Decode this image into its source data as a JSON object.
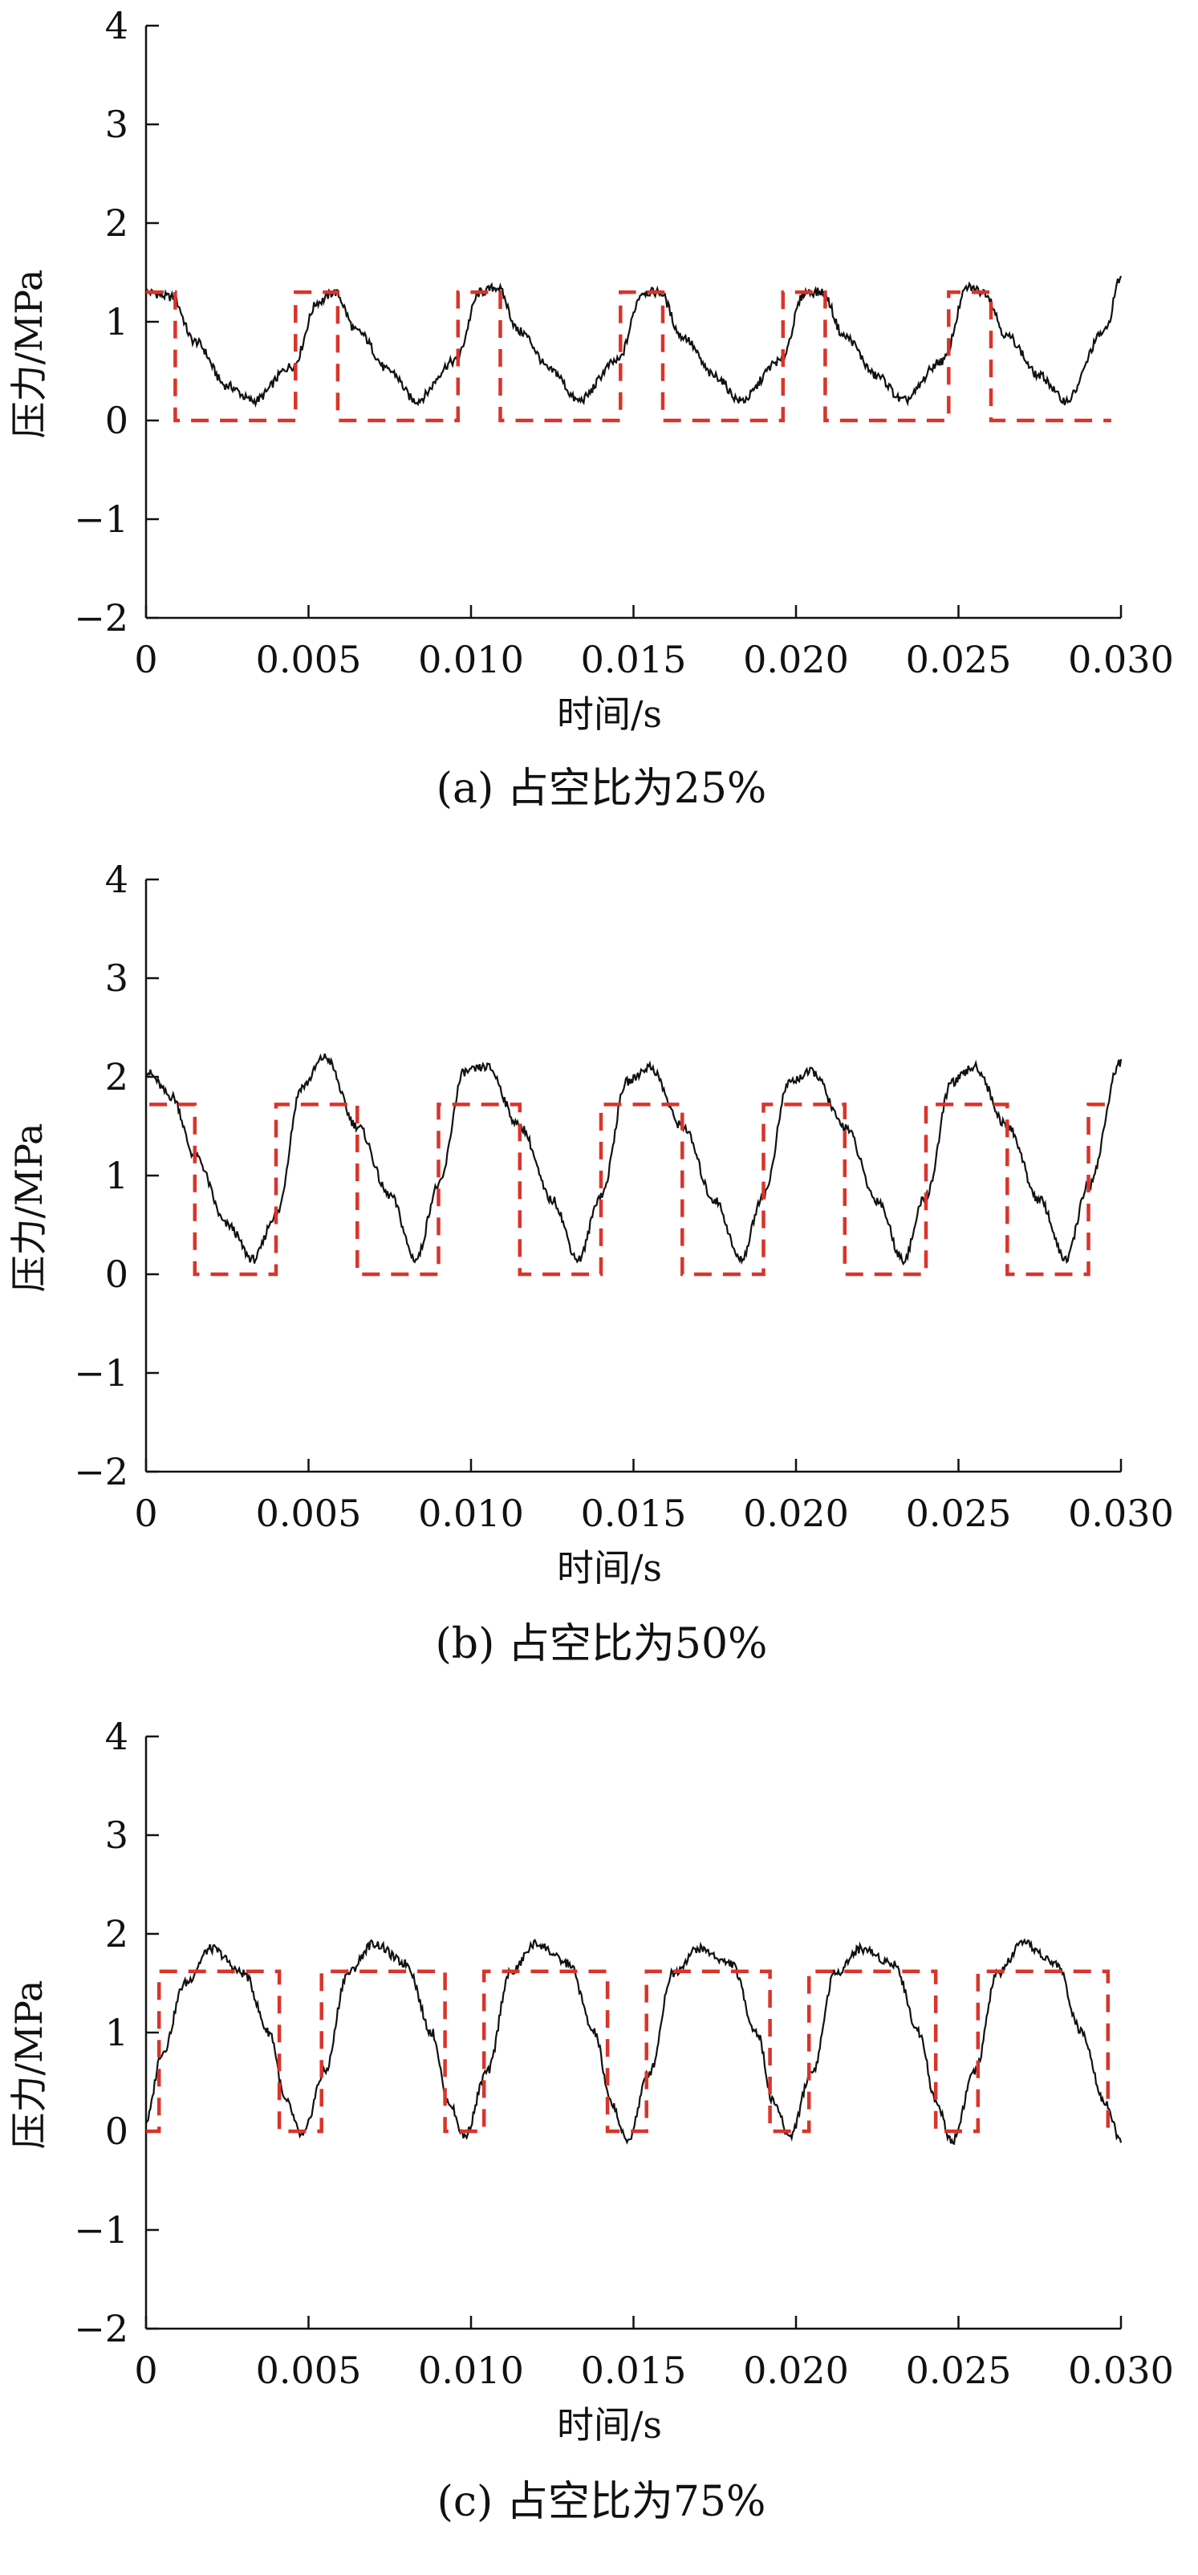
{
  "chart_data": [
    {
      "type": "line",
      "panel": "(a)",
      "caption": "(a)  占空比为25%",
      "xlabel": "时间/s",
      "ylabel": "压力/MPa",
      "xlim": [
        0,
        0.03
      ],
      "ylim": [
        -2,
        4
      ],
      "xticks": [
        "0",
        "0.005",
        "0.010",
        "0.015",
        "0.020",
        "0.025",
        "0.030"
      ],
      "yticks": [
        "−2",
        "−1",
        "0",
        "1",
        "2",
        "3",
        "4"
      ],
      "grid": false,
      "legend": "none",
      "colors": {
        "measured": "#111111",
        "command": "#d9342b"
      },
      "series": [
        {
          "style": "solid",
          "x": [
            0,
            0.0008,
            0.0015,
            0.0025,
            0.0033,
            0.0045,
            0.0053,
            0.0058,
            0.0065,
            0.0075,
            0.0083,
            0.0095,
            0.0103,
            0.0108,
            0.0115,
            0.0125,
            0.0133,
            0.0145,
            0.0153,
            0.0158,
            0.0165,
            0.0175,
            0.0183,
            0.0195,
            0.0203,
            0.0208,
            0.0215,
            0.0225,
            0.0233,
            0.0245,
            0.0253,
            0.0258,
            0.0265,
            0.0275,
            0.0283,
            0.0295,
            0.03
          ],
          "y": [
            1.3,
            1.25,
            0.8,
            0.35,
            0.2,
            0.55,
            1.2,
            1.3,
            0.9,
            0.5,
            0.2,
            0.6,
            1.3,
            1.35,
            0.9,
            0.5,
            0.2,
            0.6,
            1.3,
            1.3,
            0.85,
            0.45,
            0.2,
            0.6,
            1.3,
            1.3,
            0.85,
            0.45,
            0.2,
            0.6,
            1.35,
            1.3,
            0.85,
            0.45,
            0.2,
            0.9,
            1.45
          ]
        },
        {
          "style": "dashed",
          "x": [
            0,
            0.0009,
            0.0009,
            0.0046,
            0.0046,
            0.0059,
            0.0059,
            0.0096,
            0.0096,
            0.0109,
            0.0109,
            0.0146,
            0.0146,
            0.0159,
            0.0159,
            0.0196,
            0.0196,
            0.0209,
            0.0209,
            0.0247,
            0.0247,
            0.026,
            0.026,
            0.0297
          ],
          "y": [
            1.3,
            1.3,
            0,
            0,
            1.3,
            1.3,
            0,
            0,
            1.3,
            1.3,
            0,
            0,
            1.3,
            1.3,
            0,
            0,
            1.3,
            1.3,
            0,
            0,
            1.3,
            1.3,
            0,
            0
          ]
        }
      ]
    },
    {
      "type": "line",
      "panel": "(b)",
      "caption": "(b)  占空比为50%",
      "xlabel": "时间/s",
      "ylabel": "压力/MPa",
      "xlim": [
        0,
        0.03
      ],
      "ylim": [
        -2,
        4
      ],
      "xticks": [
        "0",
        "0.005",
        "0.010",
        "0.015",
        "0.020",
        "0.025",
        "0.030"
      ],
      "yticks": [
        "−2",
        "−1",
        "0",
        "1",
        "2",
        "3",
        "4"
      ],
      "grid": false,
      "legend": "none",
      "colors": {
        "measured": "#111111",
        "command": "#d9342b"
      },
      "series": [
        {
          "style": "solid",
          "x": [
            0,
            0.0008,
            0.0015,
            0.0025,
            0.0033,
            0.004,
            0.0048,
            0.0055,
            0.0065,
            0.0075,
            0.0083,
            0.009,
            0.0098,
            0.0105,
            0.0115,
            0.0125,
            0.0133,
            0.014,
            0.0148,
            0.0155,
            0.0165,
            0.0175,
            0.0183,
            0.019,
            0.0198,
            0.0205,
            0.0215,
            0.0225,
            0.0233,
            0.024,
            0.0248,
            0.0255,
            0.0265,
            0.0275,
            0.0283,
            0.029,
            0.03
          ],
          "y": [
            2.05,
            1.8,
            1.2,
            0.5,
            0.15,
            0.6,
            1.9,
            2.2,
            1.5,
            0.8,
            0.15,
            0.9,
            2.05,
            2.1,
            1.5,
            0.75,
            0.15,
            0.8,
            1.95,
            2.1,
            1.5,
            0.75,
            0.15,
            0.8,
            1.95,
            2.05,
            1.5,
            0.75,
            0.15,
            0.8,
            1.95,
            2.1,
            1.5,
            0.75,
            0.15,
            0.9,
            2.15
          ]
        },
        {
          "style": "dashed",
          "x": [
            0.0001,
            0.0015,
            0.0015,
            0.004,
            0.004,
            0.0065,
            0.0065,
            0.009,
            0.009,
            0.0115,
            0.0115,
            0.014,
            0.014,
            0.0165,
            0.0165,
            0.019,
            0.019,
            0.0215,
            0.0215,
            0.024,
            0.024,
            0.0265,
            0.0265,
            0.029,
            0.029,
            0.0298
          ],
          "y": [
            1.72,
            1.72,
            0,
            0,
            1.72,
            1.72,
            0,
            0,
            1.72,
            1.72,
            0,
            0,
            1.72,
            1.72,
            0,
            0,
            1.72,
            1.72,
            0,
            0,
            1.72,
            1.72,
            0,
            0,
            1.72,
            1.72
          ]
        }
      ]
    },
    {
      "type": "line",
      "panel": "(c)",
      "caption": "(c)  占空比为75%",
      "xlabel": "时间/s",
      "ylabel": "压力/MPa",
      "xlim": [
        0,
        0.03
      ],
      "ylim": [
        -2,
        4
      ],
      "xticks": [
        "0",
        "0.005",
        "0.010",
        "0.015",
        "0.020",
        "0.025",
        "0.030"
      ],
      "yticks": [
        "−2",
        "−1",
        "0",
        "1",
        "2",
        "3",
        "4"
      ],
      "grid": false,
      "legend": "none",
      "colors": {
        "measured": "#111111",
        "command": "#d9342b"
      },
      "series": [
        {
          "style": "solid",
          "x": [
            0,
            0.0005,
            0.0012,
            0.002,
            0.003,
            0.0038,
            0.0043,
            0.0048,
            0.0055,
            0.0062,
            0.007,
            0.008,
            0.0088,
            0.0093,
            0.0098,
            0.0105,
            0.0112,
            0.012,
            0.013,
            0.0138,
            0.0143,
            0.0148,
            0.0155,
            0.0162,
            0.017,
            0.018,
            0.0188,
            0.0193,
            0.0198,
            0.0205,
            0.0212,
            0.022,
            0.023,
            0.0238,
            0.0243,
            0.0248,
            0.0255,
            0.0262,
            0.027,
            0.028,
            0.0288,
            0.0295,
            0.03
          ],
          "y": [
            0.1,
            0.8,
            1.5,
            1.85,
            1.6,
            1.0,
            0.3,
            -0.05,
            0.6,
            1.6,
            1.9,
            1.7,
            1.0,
            0.3,
            -0.05,
            0.6,
            1.6,
            1.9,
            1.7,
            1.0,
            0.3,
            -0.1,
            0.6,
            1.6,
            1.85,
            1.7,
            1.0,
            0.3,
            -0.05,
            0.6,
            1.6,
            1.85,
            1.7,
            1.0,
            0.3,
            -0.1,
            0.6,
            1.6,
            1.9,
            1.7,
            1.0,
            0.3,
            -0.1
          ]
        },
        {
          "style": "dashed",
          "x": [
            0,
            0.0004,
            0.0004,
            0.0041,
            0.0041,
            0.0054,
            0.0054,
            0.0092,
            0.0092,
            0.0104,
            0.0104,
            0.0142,
            0.0142,
            0.0154,
            0.0154,
            0.0192,
            0.0192,
            0.0204,
            0.0204,
            0.0243,
            0.0243,
            0.0256,
            0.0256,
            0.0296,
            0.0296
          ],
          "y": [
            0,
            0,
            1.62,
            1.62,
            0,
            0,
            1.62,
            1.62,
            0,
            0,
            1.62,
            1.62,
            0,
            0,
            1.62,
            1.62,
            0,
            0,
            1.62,
            1.62,
            0,
            0,
            1.62,
            1.62,
            0
          ]
        }
      ]
    }
  ]
}
